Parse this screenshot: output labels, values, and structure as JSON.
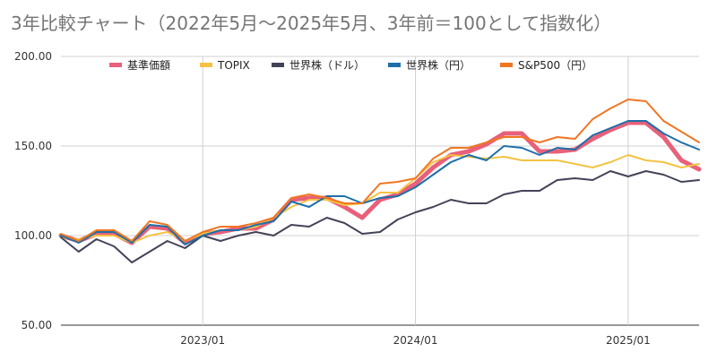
{
  "title": "3年比較チャート（2022年5月〜2025年5月、3年前＝100として指数化）",
  "chart_data": {
    "type": "line",
    "ylim": [
      50,
      200
    ],
    "yticks": [
      "50.00",
      "100.00",
      "150.00",
      "200.00"
    ],
    "xticks": [
      "2023/01",
      "2024/01",
      "2025/01"
    ],
    "grid": true,
    "legend_position": "top",
    "x": [
      "2022/05",
      "2022/06",
      "2022/07",
      "2022/08",
      "2022/09",
      "2022/10",
      "2022/11",
      "2022/12",
      "2023/01",
      "2023/02",
      "2023/03",
      "2023/04",
      "2023/05",
      "2023/06",
      "2023/07",
      "2023/08",
      "2023/09",
      "2023/10",
      "2023/11",
      "2023/12",
      "2024/01",
      "2024/02",
      "2024/03",
      "2024/04",
      "2024/05",
      "2024/06",
      "2024/07",
      "2024/08",
      "2024/09",
      "2024/10",
      "2024/11",
      "2024/12",
      "2025/01",
      "2025/02",
      "2025/03",
      "2025/04",
      "2025/05"
    ],
    "series": [
      {
        "name": "基準価額",
        "color": "#e8607a",
        "width": 5,
        "values": [
          100,
          97,
          101,
          101,
          96,
          105,
          104,
          96,
          101,
          102,
          104,
          104,
          109,
          120,
          121,
          121,
          116,
          110,
          120,
          123,
          129,
          138,
          145,
          147,
          151,
          157,
          157,
          147,
          147,
          148,
          154,
          159,
          163,
          163,
          155,
          142,
          137
        ]
      },
      {
        "name": "TOPIX",
        "color": "#f5c242",
        "width": 2,
        "values": [
          99,
          98,
          100,
          100,
          96,
          100,
          102,
          97,
          101,
          103,
          103,
          105,
          110,
          116,
          120,
          120,
          117,
          118,
          124,
          124,
          132,
          141,
          145,
          144,
          143,
          144,
          142,
          142,
          142,
          140,
          138,
          141,
          145,
          142,
          141,
          138,
          140
        ]
      },
      {
        "name": "世界株（ドル）",
        "color": "#434358",
        "width": 2,
        "values": [
          99,
          91,
          98,
          94,
          85,
          91,
          97,
          93,
          100,
          97,
          100,
          102,
          100,
          106,
          105,
          110,
          107,
          101,
          102,
          109,
          113,
          116,
          120,
          118,
          118,
          123,
          125,
          125,
          131,
          132,
          131,
          136,
          133,
          136,
          134,
          130,
          131
        ]
      },
      {
        "name": "世界株（円）",
        "color": "#1e6fa8",
        "width": 2,
        "values": [
          100,
          96,
          102,
          102,
          96,
          106,
          105,
          95,
          100,
          103,
          103,
          106,
          108,
          119,
          116,
          122,
          122,
          118,
          121,
          122,
          127,
          134,
          141,
          145,
          142,
          150,
          149,
          145,
          149,
          148,
          156,
          160,
          164,
          164,
          157,
          152,
          148
        ]
      },
      {
        "name": "S&P500（円）",
        "color": "#f07622",
        "width": 2,
        "values": [
          101,
          97,
          103,
          103,
          97,
          108,
          106,
          97,
          102,
          105,
          105,
          107,
          110,
          121,
          123,
          121,
          118,
          118,
          129,
          130,
          132,
          143,
          149,
          149,
          152,
          155,
          155,
          152,
          155,
          154,
          165,
          171,
          176,
          175,
          164,
          158,
          152
        ]
      }
    ]
  }
}
